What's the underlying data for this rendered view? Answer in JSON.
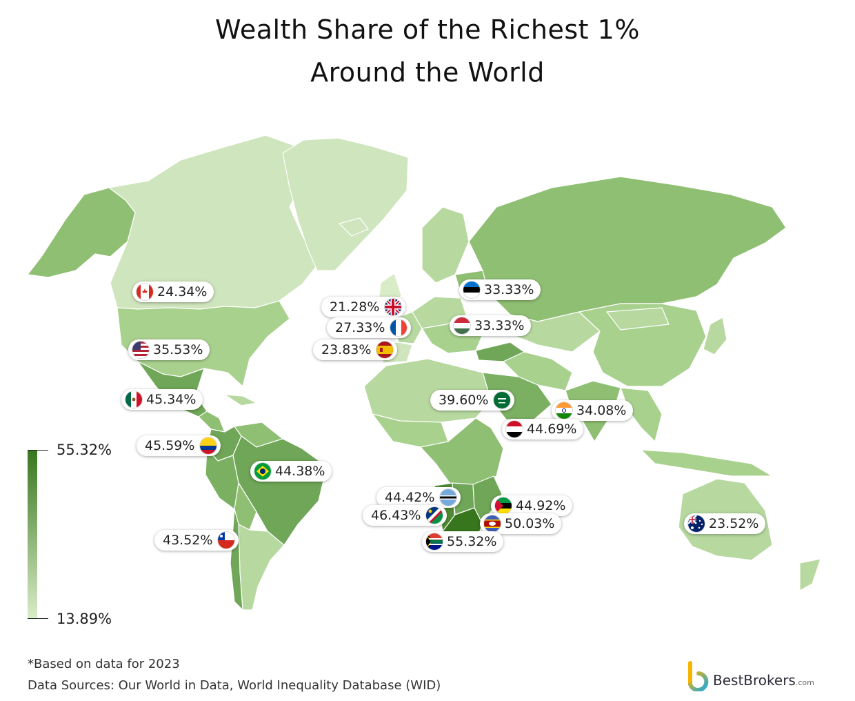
{
  "title": {
    "line1": "Wealth Share of the Richest 1%",
    "line2": "Around the World"
  },
  "legend": {
    "max": "55.32%",
    "min": "13.89%",
    "max_color": "#38761d",
    "min_color": "#d9ecc8"
  },
  "countries": [
    {
      "name": "Canada",
      "value": "24.34%",
      "flag": "canada-flag-icon"
    },
    {
      "name": "United States",
      "value": "35.53%",
      "flag": "usa-flag-icon"
    },
    {
      "name": "Mexico",
      "value": "45.34%",
      "flag": "mexico-flag-icon"
    },
    {
      "name": "Colombia",
      "value": "45.59%",
      "flag": "colombia-flag-icon"
    },
    {
      "name": "Brazil",
      "value": "44.38%",
      "flag": "brazil-flag-icon"
    },
    {
      "name": "Chile",
      "value": "43.52%",
      "flag": "chile-flag-icon"
    },
    {
      "name": "United Kingdom",
      "value": "21.28%",
      "flag": "uk-flag-icon"
    },
    {
      "name": "France",
      "value": "27.33%",
      "flag": "france-flag-icon"
    },
    {
      "name": "Spain",
      "value": "23.83%",
      "flag": "spain-flag-icon"
    },
    {
      "name": "Estonia",
      "value": "33.33%",
      "flag": "estonia-flag-icon"
    },
    {
      "name": "Hungary",
      "value": "33.33%",
      "flag": "hungary-flag-icon"
    },
    {
      "name": "Saudi Arabia",
      "value": "39.60%",
      "flag": "saudi-arabia-flag-icon"
    },
    {
      "name": "India",
      "value": "34.08%",
      "flag": "india-flag-icon"
    },
    {
      "name": "Yemen",
      "value": "44.69%",
      "flag": "yemen-flag-icon"
    },
    {
      "name": "Botswana",
      "value": "44.42%",
      "flag": "botswana-flag-icon"
    },
    {
      "name": "Namibia",
      "value": "46.43%",
      "flag": "namibia-flag-icon"
    },
    {
      "name": "Mozambique",
      "value": "44.92%",
      "flag": "mozambique-flag-icon"
    },
    {
      "name": "Eswatini",
      "value": "50.03%",
      "flag": "eswatini-flag-icon"
    },
    {
      "name": "South Africa",
      "value": "55.32%",
      "flag": "south-africa-flag-icon"
    },
    {
      "name": "Australia",
      "value": "23.52%",
      "flag": "australia-flag-icon"
    }
  ],
  "footer": {
    "note": "*Based on data for 2023",
    "sources": "Data Sources: Our World in Data, World Inequality Database (WID)"
  },
  "brand": {
    "name": "BestBrokers",
    "suffix": ".com"
  }
}
